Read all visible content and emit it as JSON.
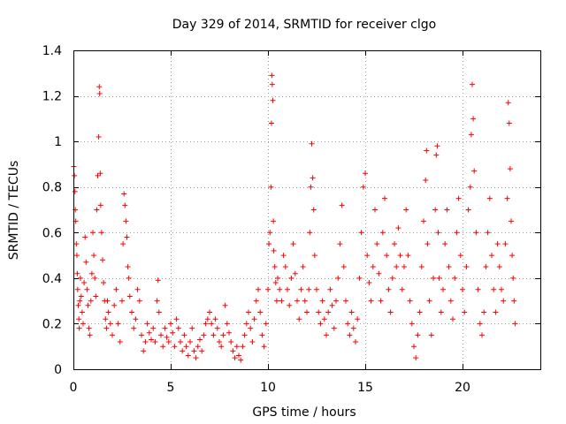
{
  "chart_data": {
    "type": "scatter",
    "title": "Day 329 of 2014, SRMTID for receiver clgo",
    "xlabel": "GPS time / hours",
    "ylabel": "SRMTID / TECUs",
    "xlim": [
      0,
      24
    ],
    "ylim": [
      0,
      1.4
    ],
    "xticks": [
      0,
      5,
      10,
      15,
      20
    ],
    "xtick_labels": [
      "0",
      "5",
      "10",
      "15",
      "20"
    ],
    "yticks": [
      0,
      0.2,
      0.4,
      0.6,
      0.8,
      1,
      1.2,
      1.4
    ],
    "ytick_labels": [
      "0",
      "0.2",
      "0.4",
      "0.6",
      "0.8",
      "1",
      "1.2",
      "1.4"
    ],
    "grid": true,
    "marker": "+",
    "color": "#ff0000",
    "series": [
      {
        "name": "SRMTID",
        "points": [
          [
            0.02,
            0.89
          ],
          [
            0.05,
            0.85
          ],
          [
            0.08,
            0.78
          ],
          [
            0.1,
            0.7
          ],
          [
            0.12,
            0.65
          ],
          [
            0.15,
            0.55
          ],
          [
            0.18,
            0.5
          ],
          [
            0.2,
            0.42
          ],
          [
            0.22,
            0.35
          ],
          [
            0.25,
            0.28
          ],
          [
            0.28,
            0.22
          ],
          [
            0.3,
            0.18
          ],
          [
            0.33,
            0.3
          ],
          [
            0.36,
            0.4
          ],
          [
            0.4,
            0.32
          ],
          [
            0.45,
            0.25
          ],
          [
            0.5,
            0.2
          ],
          [
            0.55,
            0.38
          ],
          [
            0.6,
            0.58
          ],
          [
            0.65,
            0.47
          ],
          [
            0.7,
            0.35
          ],
          [
            0.75,
            0.28
          ],
          [
            0.8,
            0.18
          ],
          [
            0.85,
            0.15
          ],
          [
            0.9,
            0.3
          ],
          [
            0.95,
            0.42
          ],
          [
            1.0,
            0.6
          ],
          [
            1.05,
            0.5
          ],
          [
            1.1,
            0.4
          ],
          [
            1.15,
            0.32
          ],
          [
            1.2,
            0.7
          ],
          [
            1.25,
            0.85
          ],
          [
            1.3,
            1.02
          ],
          [
            1.33,
            1.24
          ],
          [
            1.35,
            1.21
          ],
          [
            1.38,
            0.86
          ],
          [
            1.4,
            0.72
          ],
          [
            1.45,
            0.6
          ],
          [
            1.5,
            0.48
          ],
          [
            1.55,
            0.38
          ],
          [
            1.6,
            0.3
          ],
          [
            1.65,
            0.22
          ],
          [
            1.7,
            0.18
          ],
          [
            1.75,
            0.3
          ],
          [
            1.8,
            0.25
          ],
          [
            1.9,
            0.2
          ],
          [
            2.0,
            0.15
          ],
          [
            2.1,
            0.28
          ],
          [
            2.2,
            0.35
          ],
          [
            2.3,
            0.2
          ],
          [
            2.4,
            0.12
          ],
          [
            2.5,
            0.3
          ],
          [
            2.55,
            0.55
          ],
          [
            2.6,
            0.77
          ],
          [
            2.65,
            0.72
          ],
          [
            2.7,
            0.65
          ],
          [
            2.75,
            0.58
          ],
          [
            2.8,
            0.45
          ],
          [
            2.85,
            0.4
          ],
          [
            2.9,
            0.32
          ],
          [
            3.0,
            0.25
          ],
          [
            3.1,
            0.18
          ],
          [
            3.2,
            0.22
          ],
          [
            3.3,
            0.35
          ],
          [
            3.4,
            0.3
          ],
          [
            3.5,
            0.15
          ],
          [
            3.6,
            0.08
          ],
          [
            3.7,
            0.12
          ],
          [
            3.8,
            0.2
          ],
          [
            3.9,
            0.16
          ],
          [
            4.0,
            0.13
          ],
          [
            4.1,
            0.18
          ],
          [
            4.2,
            0.12
          ],
          [
            4.3,
            0.3
          ],
          [
            4.35,
            0.39
          ],
          [
            4.4,
            0.25
          ],
          [
            4.5,
            0.15
          ],
          [
            4.6,
            0.1
          ],
          [
            4.7,
            0.18
          ],
          [
            4.8,
            0.14
          ],
          [
            4.9,
            0.12
          ],
          [
            5.0,
            0.2
          ],
          [
            5.1,
            0.16
          ],
          [
            5.2,
            0.1
          ],
          [
            5.3,
            0.22
          ],
          [
            5.4,
            0.18
          ],
          [
            5.5,
            0.12
          ],
          [
            5.6,
            0.08
          ],
          [
            5.7,
            0.15
          ],
          [
            5.8,
            0.1
          ],
          [
            5.9,
            0.06
          ],
          [
            6.0,
            0.12
          ],
          [
            6.1,
            0.18
          ],
          [
            6.2,
            0.08
          ],
          [
            6.3,
            0.05
          ],
          [
            6.4,
            0.1
          ],
          [
            6.5,
            0.13
          ],
          [
            6.6,
            0.08
          ],
          [
            6.7,
            0.15
          ],
          [
            6.8,
            0.2
          ],
          [
            6.9,
            0.22
          ],
          [
            7.0,
            0.25
          ],
          [
            7.1,
            0.2
          ],
          [
            7.2,
            0.15
          ],
          [
            7.3,
            0.22
          ],
          [
            7.4,
            0.18
          ],
          [
            7.5,
            0.12
          ],
          [
            7.6,
            0.1
          ],
          [
            7.7,
            0.15
          ],
          [
            7.8,
            0.28
          ],
          [
            7.9,
            0.2
          ],
          [
            8.0,
            0.16
          ],
          [
            8.1,
            0.12
          ],
          [
            8.2,
            0.08
          ],
          [
            8.3,
            0.05
          ],
          [
            8.4,
            0.1
          ],
          [
            8.5,
            0.06
          ],
          [
            8.6,
            0.04
          ],
          [
            8.7,
            0.1
          ],
          [
            8.8,
            0.15
          ],
          [
            8.9,
            0.2
          ],
          [
            9.0,
            0.25
          ],
          [
            9.1,
            0.18
          ],
          [
            9.2,
            0.12
          ],
          [
            9.3,
            0.22
          ],
          [
            9.4,
            0.3
          ],
          [
            9.5,
            0.35
          ],
          [
            9.6,
            0.25
          ],
          [
            9.7,
            0.15
          ],
          [
            9.8,
            0.1
          ],
          [
            9.9,
            0.2
          ],
          [
            10.0,
            0.35
          ],
          [
            10.05,
            0.55
          ],
          [
            10.1,
            0.6
          ],
          [
            10.15,
            0.8
          ],
          [
            10.18,
            1.08
          ],
          [
            10.2,
            1.29
          ],
          [
            10.22,
            1.25
          ],
          [
            10.25,
            1.18
          ],
          [
            10.28,
            0.65
          ],
          [
            10.3,
            0.52
          ],
          [
            10.35,
            0.45
          ],
          [
            10.4,
            0.38
          ],
          [
            10.45,
            0.3
          ],
          [
            10.5,
            0.4
          ],
          [
            10.6,
            0.35
          ],
          [
            10.7,
            0.3
          ],
          [
            10.8,
            0.5
          ],
          [
            10.9,
            0.45
          ],
          [
            11.0,
            0.35
          ],
          [
            11.1,
            0.28
          ],
          [
            11.2,
            0.4
          ],
          [
            11.3,
            0.55
          ],
          [
            11.4,
            0.42
          ],
          [
            11.5,
            0.3
          ],
          [
            11.6,
            0.22
          ],
          [
            11.7,
            0.35
          ],
          [
            11.8,
            0.45
          ],
          [
            11.9,
            0.3
          ],
          [
            12.0,
            0.25
          ],
          [
            12.1,
            0.35
          ],
          [
            12.15,
            0.6
          ],
          [
            12.2,
            0.8
          ],
          [
            12.25,
            0.99
          ],
          [
            12.3,
            0.84
          ],
          [
            12.35,
            0.7
          ],
          [
            12.4,
            0.5
          ],
          [
            12.5,
            0.35
          ],
          [
            12.6,
            0.25
          ],
          [
            12.7,
            0.2
          ],
          [
            12.8,
            0.3
          ],
          [
            12.9,
            0.22
          ],
          [
            13.0,
            0.15
          ],
          [
            13.1,
            0.25
          ],
          [
            13.2,
            0.35
          ],
          [
            13.3,
            0.28
          ],
          [
            13.4,
            0.18
          ],
          [
            13.5,
            0.3
          ],
          [
            13.6,
            0.4
          ],
          [
            13.7,
            0.55
          ],
          [
            13.8,
            0.72
          ],
          [
            13.9,
            0.45
          ],
          [
            14.0,
            0.3
          ],
          [
            14.1,
            0.2
          ],
          [
            14.2,
            0.15
          ],
          [
            14.3,
            0.25
          ],
          [
            14.4,
            0.18
          ],
          [
            14.5,
            0.12
          ],
          [
            14.6,
            0.22
          ],
          [
            14.7,
            0.4
          ],
          [
            14.8,
            0.6
          ],
          [
            14.9,
            0.8
          ],
          [
            15.0,
            0.86
          ],
          [
            15.1,
            0.5
          ],
          [
            15.2,
            0.38
          ],
          [
            15.3,
            0.3
          ],
          [
            15.4,
            0.45
          ],
          [
            15.5,
            0.7
          ],
          [
            15.6,
            0.55
          ],
          [
            15.7,
            0.42
          ],
          [
            15.8,
            0.3
          ],
          [
            15.9,
            0.6
          ],
          [
            16.0,
            0.75
          ],
          [
            16.1,
            0.5
          ],
          [
            16.2,
            0.35
          ],
          [
            16.3,
            0.25
          ],
          [
            16.4,
            0.4
          ],
          [
            16.5,
            0.55
          ],
          [
            16.6,
            0.45
          ],
          [
            16.7,
            0.62
          ],
          [
            16.8,
            0.5
          ],
          [
            16.9,
            0.35
          ],
          [
            17.0,
            0.45
          ],
          [
            17.1,
            0.7
          ],
          [
            17.2,
            0.5
          ],
          [
            17.3,
            0.3
          ],
          [
            17.4,
            0.2
          ],
          [
            17.5,
            0.1
          ],
          [
            17.6,
            0.05
          ],
          [
            17.7,
            0.15
          ],
          [
            17.8,
            0.25
          ],
          [
            17.9,
            0.45
          ],
          [
            18.0,
            0.65
          ],
          [
            18.1,
            0.83
          ],
          [
            18.15,
            0.96
          ],
          [
            18.2,
            0.55
          ],
          [
            18.3,
            0.3
          ],
          [
            18.4,
            0.15
          ],
          [
            18.5,
            0.4
          ],
          [
            18.6,
            0.7
          ],
          [
            18.65,
            0.94
          ],
          [
            18.7,
            0.98
          ],
          [
            18.75,
            0.6
          ],
          [
            18.8,
            0.4
          ],
          [
            18.9,
            0.25
          ],
          [
            19.0,
            0.35
          ],
          [
            19.1,
            0.55
          ],
          [
            19.2,
            0.7
          ],
          [
            19.3,
            0.45
          ],
          [
            19.4,
            0.3
          ],
          [
            19.5,
            0.22
          ],
          [
            19.6,
            0.4
          ],
          [
            19.7,
            0.6
          ],
          [
            19.8,
            0.75
          ],
          [
            19.9,
            0.5
          ],
          [
            20.0,
            0.35
          ],
          [
            20.1,
            0.25
          ],
          [
            20.2,
            0.45
          ],
          [
            20.3,
            0.7
          ],
          [
            20.4,
            0.8
          ],
          [
            20.45,
            1.03
          ],
          [
            20.5,
            1.25
          ],
          [
            20.55,
            1.1
          ],
          [
            20.6,
            0.87
          ],
          [
            20.7,
            0.6
          ],
          [
            20.8,
            0.35
          ],
          [
            20.9,
            0.2
          ],
          [
            21.0,
            0.15
          ],
          [
            21.1,
            0.25
          ],
          [
            21.2,
            0.45
          ],
          [
            21.3,
            0.6
          ],
          [
            21.4,
            0.75
          ],
          [
            21.5,
            0.5
          ],
          [
            21.6,
            0.35
          ],
          [
            21.7,
            0.25
          ],
          [
            21.8,
            0.55
          ],
          [
            21.9,
            0.45
          ],
          [
            22.0,
            0.35
          ],
          [
            22.1,
            0.3
          ],
          [
            22.2,
            0.55
          ],
          [
            22.3,
            0.75
          ],
          [
            22.35,
            1.17
          ],
          [
            22.4,
            1.08
          ],
          [
            22.45,
            0.88
          ],
          [
            22.5,
            0.65
          ],
          [
            22.55,
            0.5
          ],
          [
            22.6,
            0.4
          ],
          [
            22.65,
            0.3
          ],
          [
            22.7,
            0.2
          ]
        ]
      }
    ]
  }
}
